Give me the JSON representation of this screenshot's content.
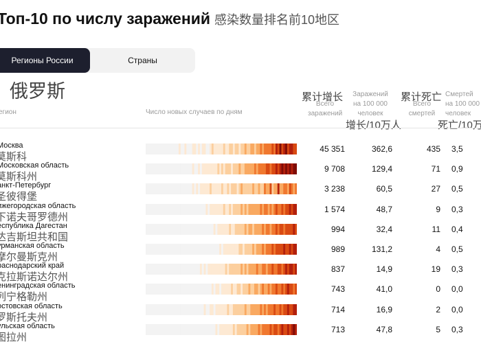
{
  "title": "Топ-10 по числу заражений",
  "title_zh": "感染数量排名前10地区",
  "tabs": [
    {
      "label": "Регионы России",
      "active": true
    },
    {
      "label": "Страны",
      "active": false
    }
  ],
  "subtitle_zh": "俄罗斯",
  "headers": {
    "region": "егион",
    "trend": "Число новых случаев по дням",
    "total_cases_zh": "累计增长",
    "total_cases_line1": "Всего",
    "total_cases_line2": "заражений",
    "per100k_line1": "Заражений",
    "per100k_line2": "на 100 000",
    "per100k_line3": "человек",
    "per100k_zh": "增长/10万人",
    "total_deaths_zh": "累计死亡",
    "total_deaths_line1": "Всего",
    "total_deaths_line2": "смертей",
    "deaths100k_line1": "Смертей",
    "deaths100k_line2": "на 100 000",
    "deaths100k_line3": "человек",
    "deaths100k_zh": "死亡/10万"
  },
  "colors": {
    "heat_scale": [
      "#f3f3f3",
      "#fde9d3",
      "#fccf9e",
      "#f9a961",
      "#f0782f",
      "#d94a13",
      "#b3200c",
      "#7f0c06"
    ],
    "tab_active_bg": "#1d1f2e"
  },
  "rows": [
    {
      "name": "Москва",
      "name_zh": "莫斯科",
      "cases": "45 351",
      "per100k": "362,6",
      "deaths": "435",
      "deaths100k": "3,5",
      "trend": [
        0,
        0,
        0,
        0,
        0,
        0,
        0,
        0,
        0,
        0,
        0,
        0,
        0,
        0,
        0,
        0,
        0,
        1,
        0,
        0,
        1,
        0,
        0,
        0,
        1,
        1,
        0,
        1,
        0,
        1,
        1,
        0,
        0,
        1,
        2,
        1,
        1,
        1,
        1,
        1,
        2,
        1,
        1,
        2,
        2,
        1,
        2,
        2,
        1,
        2,
        2,
        3,
        2,
        2,
        3,
        3,
        2,
        3,
        3,
        4,
        3,
        4,
        4,
        4,
        4,
        5,
        4,
        6,
        5,
        7,
        5,
        6,
        7,
        5,
        6,
        6,
        5,
        5
      ]
    },
    {
      "name": "Московская область",
      "name_zh": "莫斯科州",
      "cases": "9 708",
      "per100k": "129,4",
      "deaths": "71",
      "deaths100k": "0,9",
      "trend": [
        0,
        0,
        0,
        0,
        0,
        0,
        0,
        0,
        0,
        0,
        0,
        0,
        0,
        0,
        0,
        0,
        0,
        0,
        0,
        0,
        0,
        0,
        0,
        0,
        1,
        0,
        0,
        1,
        0,
        1,
        1,
        1,
        1,
        1,
        1,
        1,
        1,
        2,
        1,
        2,
        1,
        2,
        2,
        2,
        1,
        2,
        2,
        2,
        3,
        2,
        2,
        3,
        3,
        3,
        3,
        3,
        4,
        3,
        4,
        4,
        4,
        4,
        5,
        5,
        4,
        5,
        5,
        6,
        5,
        6,
        7,
        6,
        7,
        6,
        7,
        6,
        7,
        7
      ]
    },
    {
      "name": "анкт-Петербург",
      "name_zh": "圣彼得堡",
      "cases": "3 238",
      "per100k": "60,5",
      "deaths": "27",
      "deaths100k": "0,5",
      "trend": [
        0,
        0,
        0,
        0,
        0,
        0,
        0,
        0,
        0,
        0,
        0,
        0,
        0,
        0,
        0,
        0,
        0,
        0,
        0,
        0,
        0,
        0,
        0,
        0,
        1,
        0,
        1,
        0,
        1,
        1,
        1,
        1,
        1,
        2,
        1,
        1,
        1,
        1,
        1,
        2,
        1,
        1,
        2,
        1,
        2,
        2,
        2,
        1,
        2,
        3,
        2,
        2,
        2,
        2,
        2,
        3,
        2,
        2,
        3,
        2,
        2,
        4,
        3,
        3,
        5,
        2,
        3,
        3,
        6,
        3,
        3,
        4,
        4,
        3,
        5,
        4,
        3,
        4
      ]
    },
    {
      "name": "ижегородская область",
      "name_zh": "下诺夫哥罗德州",
      "cases": "1 574",
      "per100k": "48,7",
      "deaths": "9",
      "deaths100k": "0,3",
      "trend": [
        0,
        0,
        0,
        0,
        0,
        0,
        0,
        0,
        0,
        0,
        0,
        0,
        0,
        0,
        0,
        0,
        0,
        0,
        0,
        0,
        0,
        0,
        0,
        0,
        0,
        0,
        0,
        0,
        0,
        0,
        0,
        1,
        0,
        1,
        1,
        1,
        1,
        1,
        1,
        1,
        2,
        1,
        1,
        2,
        1,
        2,
        2,
        2,
        2,
        3,
        2,
        3,
        2,
        3,
        3,
        3,
        3,
        3,
        3,
        4,
        3,
        4,
        4,
        3,
        4,
        3,
        4,
        5,
        4,
        4,
        5,
        4,
        5,
        5,
        6,
        5,
        6,
        6
      ]
    },
    {
      "name": "еспублика Дагестан",
      "name_zh": "达吉斯坦共和国",
      "cases": "994",
      "per100k": "32,4",
      "deaths": "11",
      "deaths100k": "0,4",
      "trend": [
        0,
        0,
        0,
        0,
        0,
        0,
        0,
        0,
        0,
        0,
        0,
        0,
        0,
        0,
        0,
        0,
        0,
        0,
        0,
        0,
        0,
        0,
        0,
        0,
        0,
        0,
        0,
        0,
        0,
        0,
        0,
        0,
        0,
        0,
        0,
        1,
        0,
        1,
        1,
        1,
        1,
        1,
        1,
        2,
        1,
        1,
        2,
        2,
        2,
        2,
        2,
        3,
        2,
        3,
        3,
        2,
        3,
        3,
        3,
        3,
        4,
        3,
        4,
        4,
        3,
        4,
        4,
        5,
        4,
        5,
        5,
        4,
        5,
        5,
        5,
        5,
        6,
        5
      ]
    },
    {
      "name": "урманская область",
      "name_zh": "摩尔曼斯克州",
      "cases": "989",
      "per100k": "131,2",
      "deaths": "4",
      "deaths100k": "0,5",
      "trend": [
        0,
        0,
        0,
        0,
        0,
        0,
        0,
        0,
        0,
        0,
        0,
        0,
        0,
        0,
        0,
        0,
        0,
        0,
        0,
        0,
        0,
        0,
        0,
        0,
        0,
        0,
        0,
        0,
        0,
        0,
        0,
        0,
        0,
        0,
        0,
        0,
        0,
        0,
        1,
        0,
        1,
        1,
        1,
        1,
        1,
        1,
        1,
        1,
        2,
        2,
        1,
        2,
        2,
        2,
        2,
        3,
        2,
        3,
        3,
        3,
        4,
        3,
        4,
        4,
        4,
        5,
        4,
        5,
        5,
        5,
        5,
        6,
        5,
        5,
        6,
        5,
        6,
        6
      ]
    },
    {
      "name": "раснодарский край",
      "name_zh": "克拉斯诺达尔州",
      "cases": "837",
      "per100k": "14,9",
      "deaths": "19",
      "deaths100k": "0,3",
      "trend": [
        0,
        0,
        0,
        0,
        0,
        0,
        0,
        0,
        0,
        0,
        0,
        0,
        0,
        0,
        0,
        0,
        0,
        0,
        0,
        0,
        0,
        0,
        0,
        0,
        0,
        0,
        0,
        0,
        1,
        0,
        1,
        0,
        1,
        1,
        1,
        1,
        1,
        1,
        1,
        1,
        1,
        2,
        1,
        2,
        2,
        2,
        2,
        2,
        2,
        3,
        2,
        3,
        2,
        3,
        3,
        3,
        3,
        4,
        3,
        3,
        4,
        4,
        3,
        4,
        4,
        5,
        4,
        4,
        5,
        5,
        4,
        5,
        6,
        5,
        6,
        6,
        5,
        6
      ]
    },
    {
      "name": "енинградская область",
      "name_zh": "列宁格勒州",
      "cases": "743",
      "per100k": "41,0",
      "deaths": "0",
      "deaths100k": "0,0",
      "trend": [
        0,
        0,
        0,
        0,
        0,
        0,
        0,
        0,
        0,
        0,
        0,
        0,
        0,
        0,
        0,
        0,
        0,
        0,
        0,
        0,
        0,
        0,
        0,
        0,
        0,
        0,
        0,
        0,
        0,
        0,
        0,
        0,
        0,
        0,
        1,
        0,
        1,
        1,
        0,
        1,
        1,
        1,
        1,
        1,
        2,
        1,
        1,
        2,
        2,
        1,
        2,
        2,
        2,
        3,
        2,
        2,
        3,
        3,
        2,
        3,
        4,
        3,
        3,
        4,
        3,
        4,
        4,
        5,
        4,
        4,
        5,
        4,
        5,
        6,
        5,
        5,
        4,
        5
      ]
    },
    {
      "name": "остовская область",
      "name_zh": "罗斯托夫州",
      "cases": "714",
      "per100k": "16,9",
      "deaths": "2",
      "deaths100k": "0,0",
      "trend": [
        0,
        0,
        0,
        0,
        0,
        0,
        0,
        0,
        0,
        0,
        0,
        0,
        0,
        0,
        0,
        0,
        0,
        0,
        0,
        0,
        0,
        0,
        0,
        0,
        0,
        0,
        0,
        0,
        0,
        0,
        1,
        0,
        0,
        1,
        1,
        0,
        1,
        1,
        1,
        1,
        1,
        1,
        2,
        1,
        1,
        2,
        2,
        2,
        2,
        2,
        2,
        3,
        2,
        2,
        3,
        3,
        3,
        3,
        3,
        4,
        3,
        4,
        3,
        4,
        4,
        4,
        5,
        4,
        4,
        5,
        4,
        5,
        5,
        6,
        5,
        5,
        6,
        6
      ]
    },
    {
      "name": "ульская область",
      "name_zh": "图拉州",
      "cases": "713",
      "per100k": "47,8",
      "deaths": "5",
      "deaths100k": "0,3",
      "trend": [
        0,
        0,
        0,
        0,
        0,
        0,
        0,
        0,
        0,
        0,
        0,
        0,
        0,
        0,
        0,
        0,
        0,
        0,
        0,
        0,
        0,
        0,
        0,
        0,
        0,
        0,
        0,
        0,
        0,
        0,
        0,
        0,
        0,
        0,
        0,
        0,
        1,
        0,
        1,
        1,
        1,
        1,
        1,
        1,
        1,
        2,
        1,
        2,
        2,
        2,
        2,
        2,
        3,
        2,
        3,
        3,
        3,
        3,
        4,
        3,
        4,
        4,
        4,
        4,
        5,
        4,
        5,
        5,
        4,
        5,
        6,
        5,
        5,
        6,
        5,
        6,
        7,
        6
      ]
    }
  ]
}
